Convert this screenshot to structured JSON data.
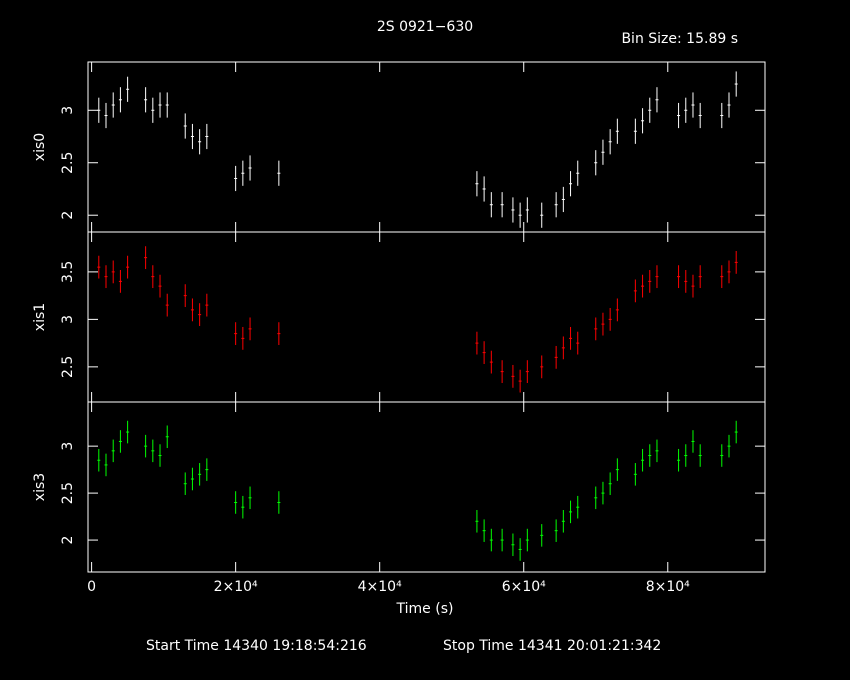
{
  "chart_data": [
    {
      "type": "errorbar",
      "title": "2S 0921−630",
      "subtitle": "Bin Size: 15.89 s",
      "y_label": "xis0",
      "xlim": [
        -500,
        93500
      ],
      "ylim": [
        1.84,
        3.46
      ],
      "yticks": [
        2,
        2.5,
        3
      ],
      "series": [
        {
          "color": "#ffffff",
          "error": 0.12,
          "x": [
            1000,
            2000,
            3000,
            4000,
            5000,
            7500,
            8500,
            9500,
            10500,
            13000,
            14000,
            15000,
            16000,
            20000,
            21000,
            22000,
            26000,
            53500,
            54500,
            55500,
            57000,
            58500,
            59500,
            60500,
            62500,
            64500,
            65500,
            66500,
            67500,
            70000,
            71000,
            72000,
            73000,
            75500,
            76500,
            77500,
            78500,
            81500,
            82500,
            83500,
            84500,
            87500,
            88500,
            89500
          ],
          "values": [
            3.0,
            2.95,
            3.05,
            3.1,
            3.2,
            3.1,
            3.0,
            3.05,
            3.05,
            2.85,
            2.75,
            2.7,
            2.75,
            2.35,
            2.4,
            2.45,
            2.4,
            2.3,
            2.25,
            2.1,
            2.1,
            2.05,
            2.0,
            2.05,
            2.0,
            2.1,
            2.15,
            2.3,
            2.4,
            2.5,
            2.6,
            2.7,
            2.8,
            2.8,
            2.9,
            3.0,
            3.1,
            2.95,
            3.0,
            3.05,
            2.95,
            2.95,
            3.05,
            3.25
          ]
        }
      ]
    },
    {
      "type": "errorbar",
      "y_label": "xis1",
      "xlim": [
        -500,
        93500
      ],
      "ylim": [
        2.13,
        3.92
      ],
      "yticks": [
        2.5,
        3,
        3.5
      ],
      "series": [
        {
          "color": "#ff0000",
          "error": 0.12,
          "x": [
            1000,
            2000,
            3000,
            4000,
            5000,
            7500,
            8500,
            9500,
            10500,
            13000,
            14000,
            15000,
            16000,
            20000,
            21000,
            22000,
            26000,
            53500,
            54500,
            55500,
            57000,
            58500,
            59500,
            60500,
            62500,
            64500,
            65500,
            66500,
            67500,
            70000,
            71000,
            72000,
            73000,
            75500,
            76500,
            77500,
            78500,
            81500,
            82500,
            83500,
            84500,
            87500,
            88500,
            89500
          ],
          "values": [
            3.55,
            3.45,
            3.5,
            3.4,
            3.55,
            3.65,
            3.45,
            3.35,
            3.15,
            3.25,
            3.1,
            3.05,
            3.15,
            2.85,
            2.8,
            2.9,
            2.85,
            2.75,
            2.65,
            2.55,
            2.45,
            2.4,
            2.35,
            2.45,
            2.5,
            2.6,
            2.7,
            2.8,
            2.75,
            2.9,
            2.95,
            3.0,
            3.1,
            3.3,
            3.35,
            3.4,
            3.45,
            3.45,
            3.4,
            3.35,
            3.45,
            3.45,
            3.5,
            3.6
          ]
        }
      ]
    },
    {
      "type": "errorbar",
      "y_label": "xis3",
      "x_label": "Time (s)",
      "annotations": [
        "Start Time 14340 19:18:54:216",
        "Stop Time 14341 20:01:21:342"
      ],
      "xlim": [
        -500,
        93500
      ],
      "ylim": [
        1.66,
        3.47
      ],
      "yticks": [
        2,
        2.5,
        3
      ],
      "xticks": [
        0,
        {
          "value": 20000,
          "label": "2×10⁴"
        },
        {
          "value": 40000,
          "label": "4×10⁴"
        },
        {
          "value": 60000,
          "label": "6×10⁴"
        },
        {
          "value": 80000,
          "label": "8×10⁴"
        }
      ],
      "series": [
        {
          "color": "#00ff00",
          "error": 0.12,
          "x": [
            1000,
            2000,
            3000,
            4000,
            5000,
            7500,
            8500,
            9500,
            10500,
            13000,
            14000,
            15000,
            16000,
            20000,
            21000,
            22000,
            26000,
            53500,
            54500,
            55500,
            57000,
            58500,
            59500,
            60500,
            62500,
            64500,
            65500,
            66500,
            67500,
            70000,
            71000,
            72000,
            73000,
            75500,
            76500,
            77500,
            78500,
            81500,
            82500,
            83500,
            84500,
            87500,
            88500,
            89500
          ],
          "values": [
            2.85,
            2.8,
            2.95,
            3.05,
            3.15,
            3.0,
            2.95,
            2.9,
            3.1,
            2.6,
            2.65,
            2.7,
            2.75,
            2.4,
            2.35,
            2.45,
            2.4,
            2.2,
            2.1,
            2.0,
            2.0,
            1.95,
            1.9,
            2.0,
            2.05,
            2.1,
            2.2,
            2.3,
            2.35,
            2.45,
            2.5,
            2.6,
            2.75,
            2.7,
            2.85,
            2.9,
            2.95,
            2.85,
            2.9,
            3.05,
            2.9,
            2.9,
            3.0,
            3.15
          ]
        }
      ]
    }
  ]
}
